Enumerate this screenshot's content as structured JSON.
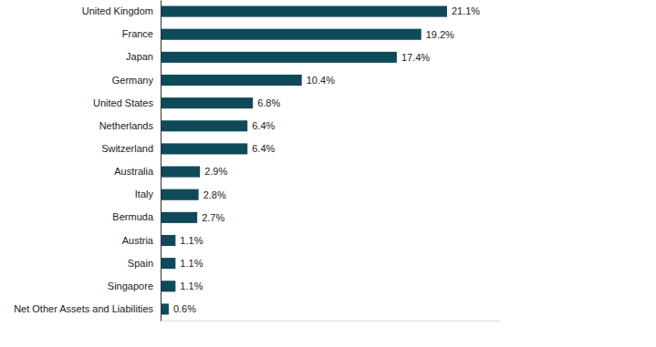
{
  "chart_data": {
    "type": "bar",
    "orientation": "horizontal",
    "categories": [
      "United Kingdom",
      "France",
      "Japan",
      "Germany",
      "United States",
      "Netherlands",
      "Switzerland",
      "Australia",
      "Italy",
      "Bermuda",
      "Austria",
      "Spain",
      "Singapore",
      "Net Other Assets and Liabilities"
    ],
    "values": [
      21.1,
      19.2,
      17.4,
      10.4,
      6.8,
      6.4,
      6.4,
      2.9,
      2.8,
      2.7,
      1.1,
      1.1,
      1.1,
      0.6
    ],
    "value_labels": [
      "21.1%",
      "19.2%",
      "17.4%",
      "10.4%",
      "6.8%",
      "6.4%",
      "6.4%",
      "2.9%",
      "2.8%",
      "2.7%",
      "1.1%",
      "1.1%",
      "1.1%",
      "0.6%"
    ],
    "color": "#0f4a5a",
    "xlim": [
      0,
      25
    ],
    "xticks": [],
    "data_labels": true,
    "tick_labels": "y",
    "grid": false
  }
}
